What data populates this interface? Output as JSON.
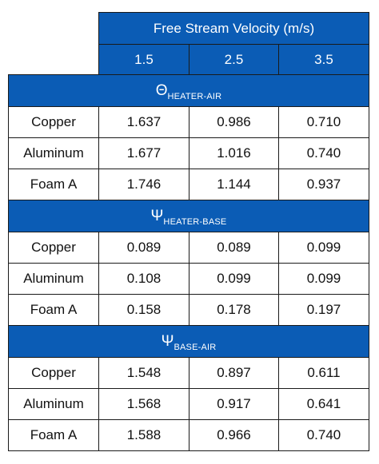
{
  "header": {
    "title": "Free Stream Velocity (m/s)",
    "velocities": [
      "1.5",
      "2.5",
      "3.5"
    ]
  },
  "sections": [
    {
      "symbol": "Θ",
      "subscript": "HEATER-AIR",
      "rows": [
        [
          "Copper",
          "1.637",
          "0.986",
          "0.710"
        ],
        [
          "Aluminum",
          "1.677",
          "1.016",
          "0.740"
        ],
        [
          "Foam A",
          "1.746",
          "1.144",
          "0.937"
        ]
      ]
    },
    {
      "symbol": "Ψ",
      "subscript": "HEATER-BASE",
      "rows": [
        [
          "Copper",
          "0.089",
          "0.089",
          "0.099"
        ],
        [
          "Aluminum",
          "0.108",
          "0.099",
          "0.099"
        ],
        [
          "Foam A",
          "0.158",
          "0.178",
          "0.197"
        ]
      ]
    },
    {
      "symbol": "Ψ",
      "subscript": "BASE-AIR",
      "rows": [
        [
          "Copper",
          "1.548",
          "0.897",
          "0.611"
        ],
        [
          "Aluminum",
          "1.568",
          "0.917",
          "0.641"
        ],
        [
          "Foam A",
          "1.588",
          "0.966",
          "0.740"
        ]
      ]
    }
  ]
}
